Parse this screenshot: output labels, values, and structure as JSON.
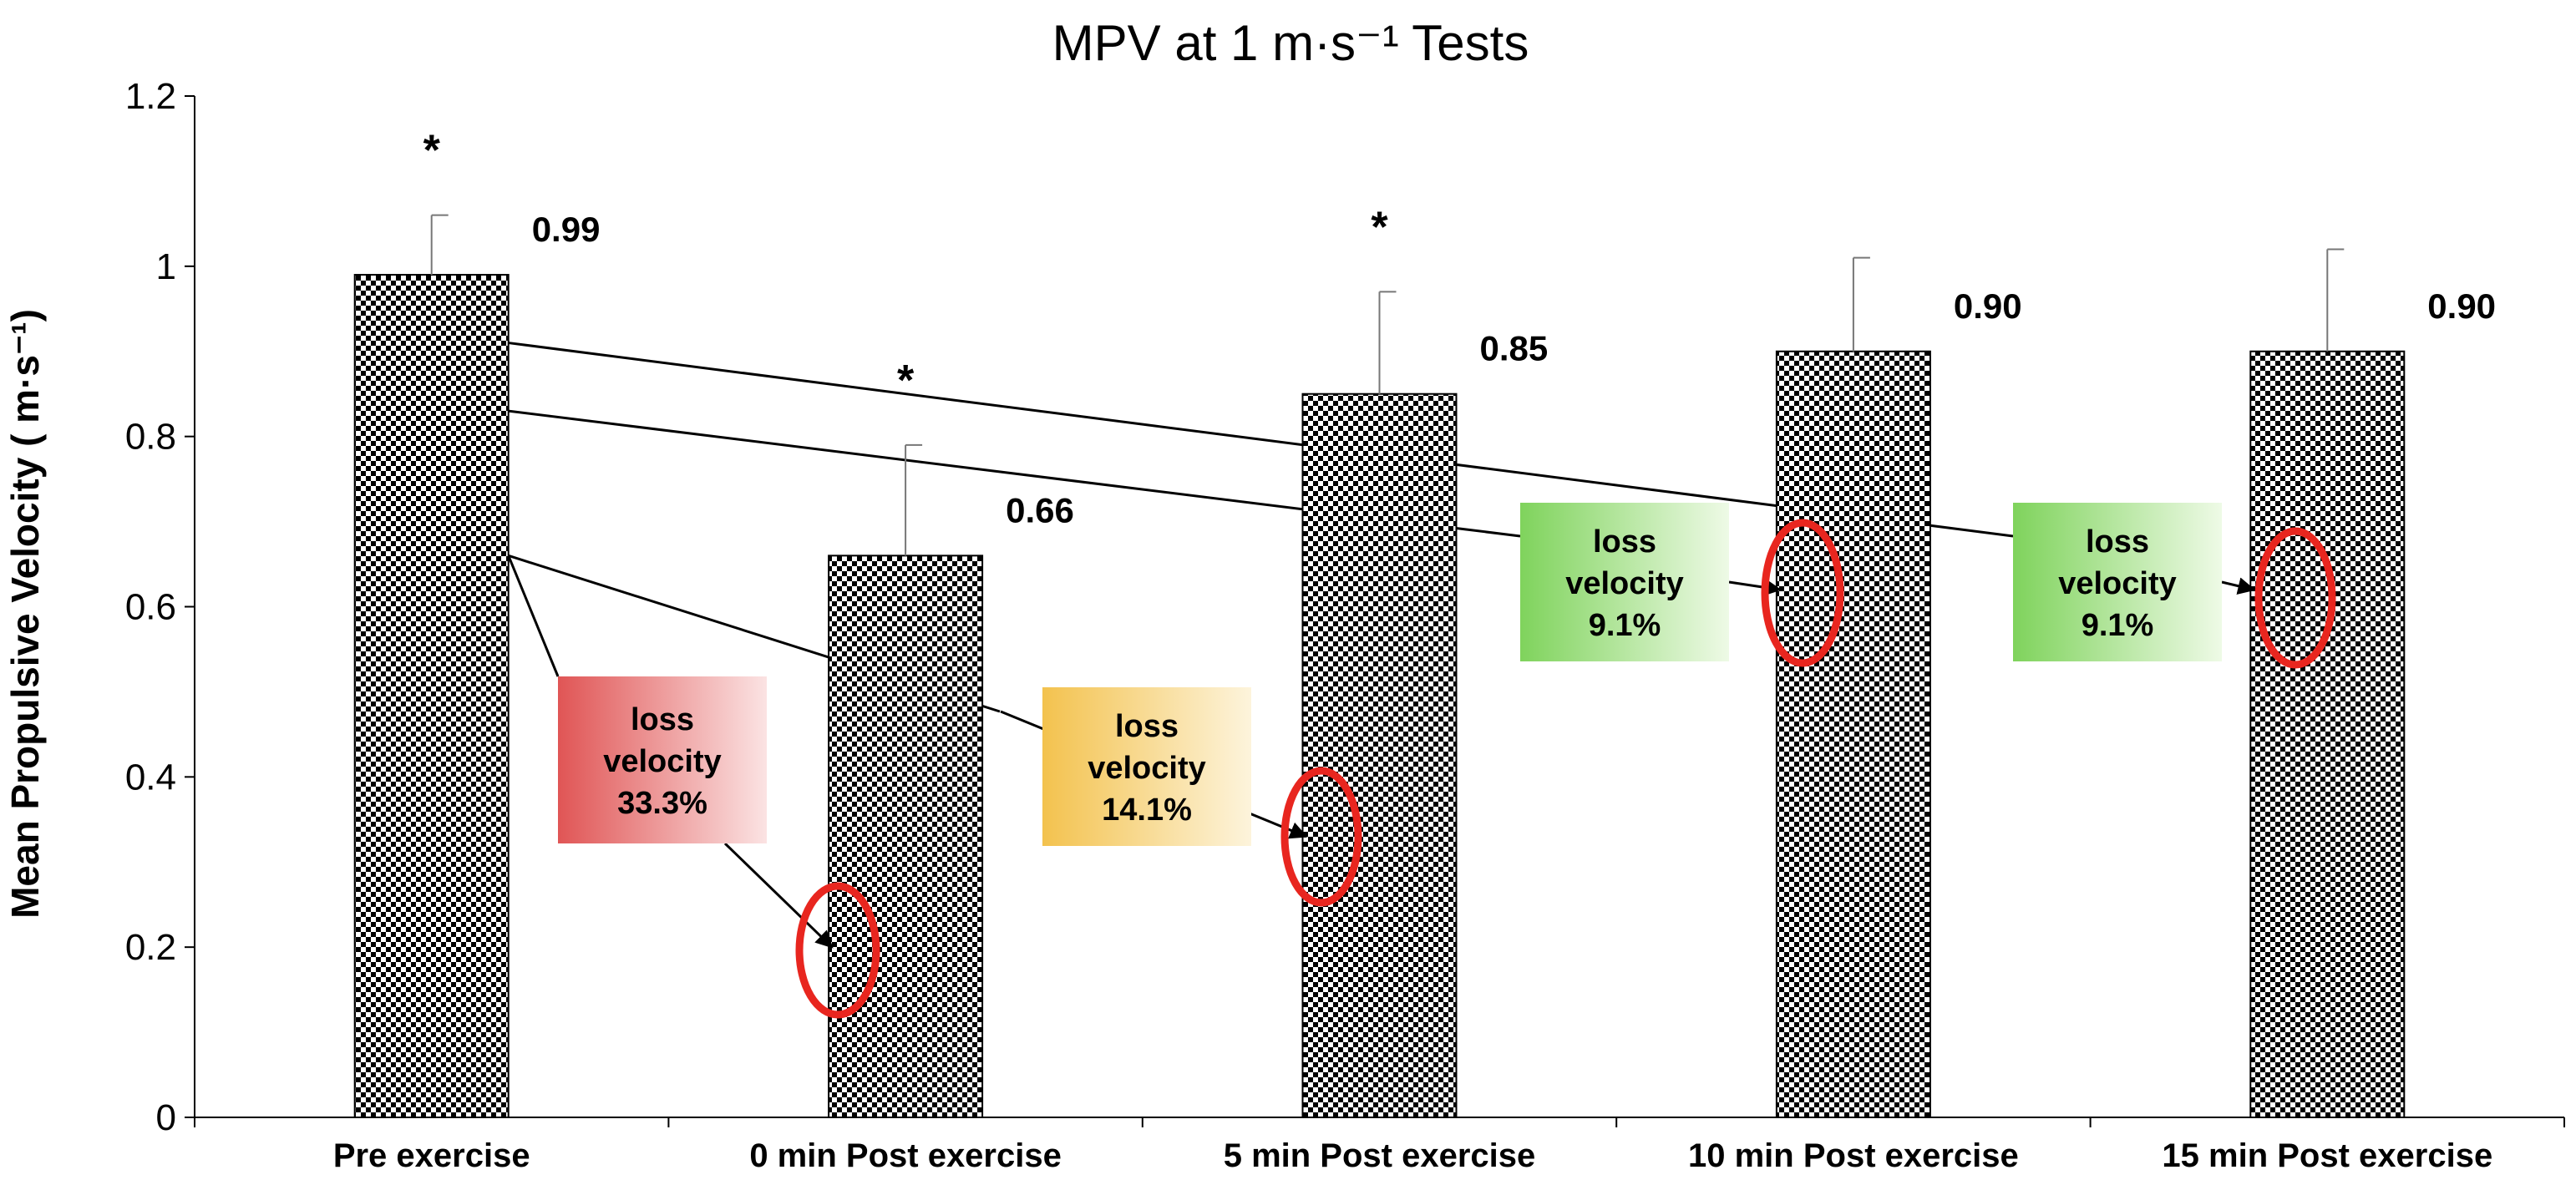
{
  "chart_data": {
    "type": "bar",
    "title": "MPV at 1 m·s⁻¹ Tests",
    "xlabel": "",
    "ylabel": "Mean Propulsive Velocity ( m·s⁻¹)",
    "ylim": [
      0,
      1.2
    ],
    "yticks": [
      0,
      0.2,
      0.4,
      0.6,
      0.8,
      1,
      1.2
    ],
    "ytick_labels": [
      "0",
      "0.2",
      "0.4",
      "0.6",
      "0.8",
      "1",
      "1.2"
    ],
    "categories": [
      "Pre exercise",
      "0 min Post exercise",
      "5 min Post exercise",
      "10 min Post exercise",
      "15 min Post exercise"
    ],
    "values": [
      0.99,
      0.66,
      0.85,
      0.9,
      0.9
    ],
    "value_labels": [
      "0.99",
      "0.66",
      "0.85",
      "0.90",
      "0.90"
    ],
    "error_upper": [
      1.06,
      0.79,
      0.97,
      1.01,
      1.02
    ],
    "significance": [
      "*",
      "*",
      "*",
      "",
      ""
    ],
    "bar_pattern": "black-white checkerboard",
    "grid": false,
    "annotations": [
      {
        "line1": "loss",
        "line2": "velocity",
        "line3": "33.3%",
        "target": "0 min Post exercise",
        "from_y": 0.66,
        "target_y": 0.2,
        "color": "#e05555"
      },
      {
        "line1": "loss",
        "line2": "velocity",
        "line3": "14.1%",
        "target": "5 min Post exercise",
        "from_y": 0.66,
        "target_y": 0.33,
        "color": "#f3c24e"
      },
      {
        "line1": "loss",
        "line2": "velocity",
        "line3": "9.1%",
        "target": "10 min Post exercise",
        "from_y": 0.83,
        "target_y": 0.62,
        "color": "#7fd35c"
      },
      {
        "line1": "loss",
        "line2": "velocity",
        "line3": "9.1%",
        "target": "15 min Post exercise",
        "from_y": 0.91,
        "target_y": 0.62,
        "color": "#7fd35c"
      }
    ],
    "highlight_color": "#e8261f"
  }
}
